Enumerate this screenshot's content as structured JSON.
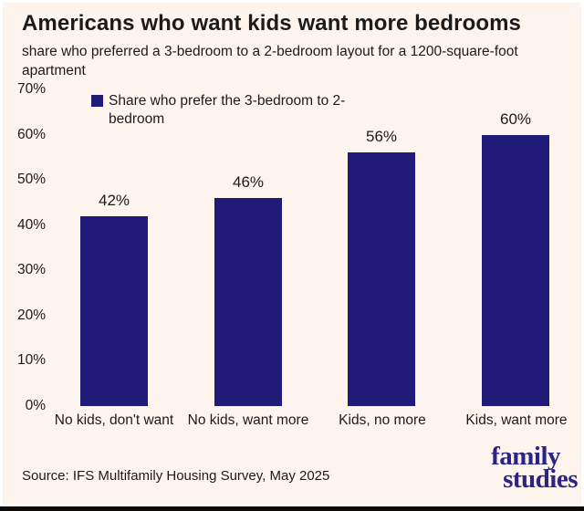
{
  "header": {
    "title": "Americans who want kids want more bedrooms",
    "subtitle": "share who preferred a 3-bedroom to a 2-bedroom layout for a 1200-square-foot apartment"
  },
  "chart_data": {
    "type": "bar",
    "title": "Americans who want kids want more bedrooms",
    "subtitle": "share who preferred a 3-bedroom to a 2-bedroom layout for a 1200-square-foot apartment",
    "categories": [
      "No kids, don't want",
      "No kids, want more",
      "Kids, no more",
      "Kids, want more"
    ],
    "values": [
      42,
      46,
      56,
      60
    ],
    "value_labels": [
      "42%",
      "46%",
      "56%",
      "60%"
    ],
    "legend": {
      "position": "top-left",
      "label": "Share who prefer the 3-bedroom to 2-bedroom"
    },
    "xlabel": "",
    "ylabel": "",
    "ylim": [
      0,
      70
    ],
    "yticks": [
      "70%",
      "60%",
      "50%",
      "40%",
      "30%",
      "20%",
      "10%",
      "0%"
    ],
    "grid": false,
    "bar_color": "#201a79",
    "background_color": "#fdf4ed",
    "text_color": "#1c1b1b"
  },
  "footer": {
    "source": "Source: IFS Multifamily Housing Survey, May 2025",
    "logo": {
      "line1": "family",
      "line2": "studies",
      "color": "#2b2484"
    }
  }
}
